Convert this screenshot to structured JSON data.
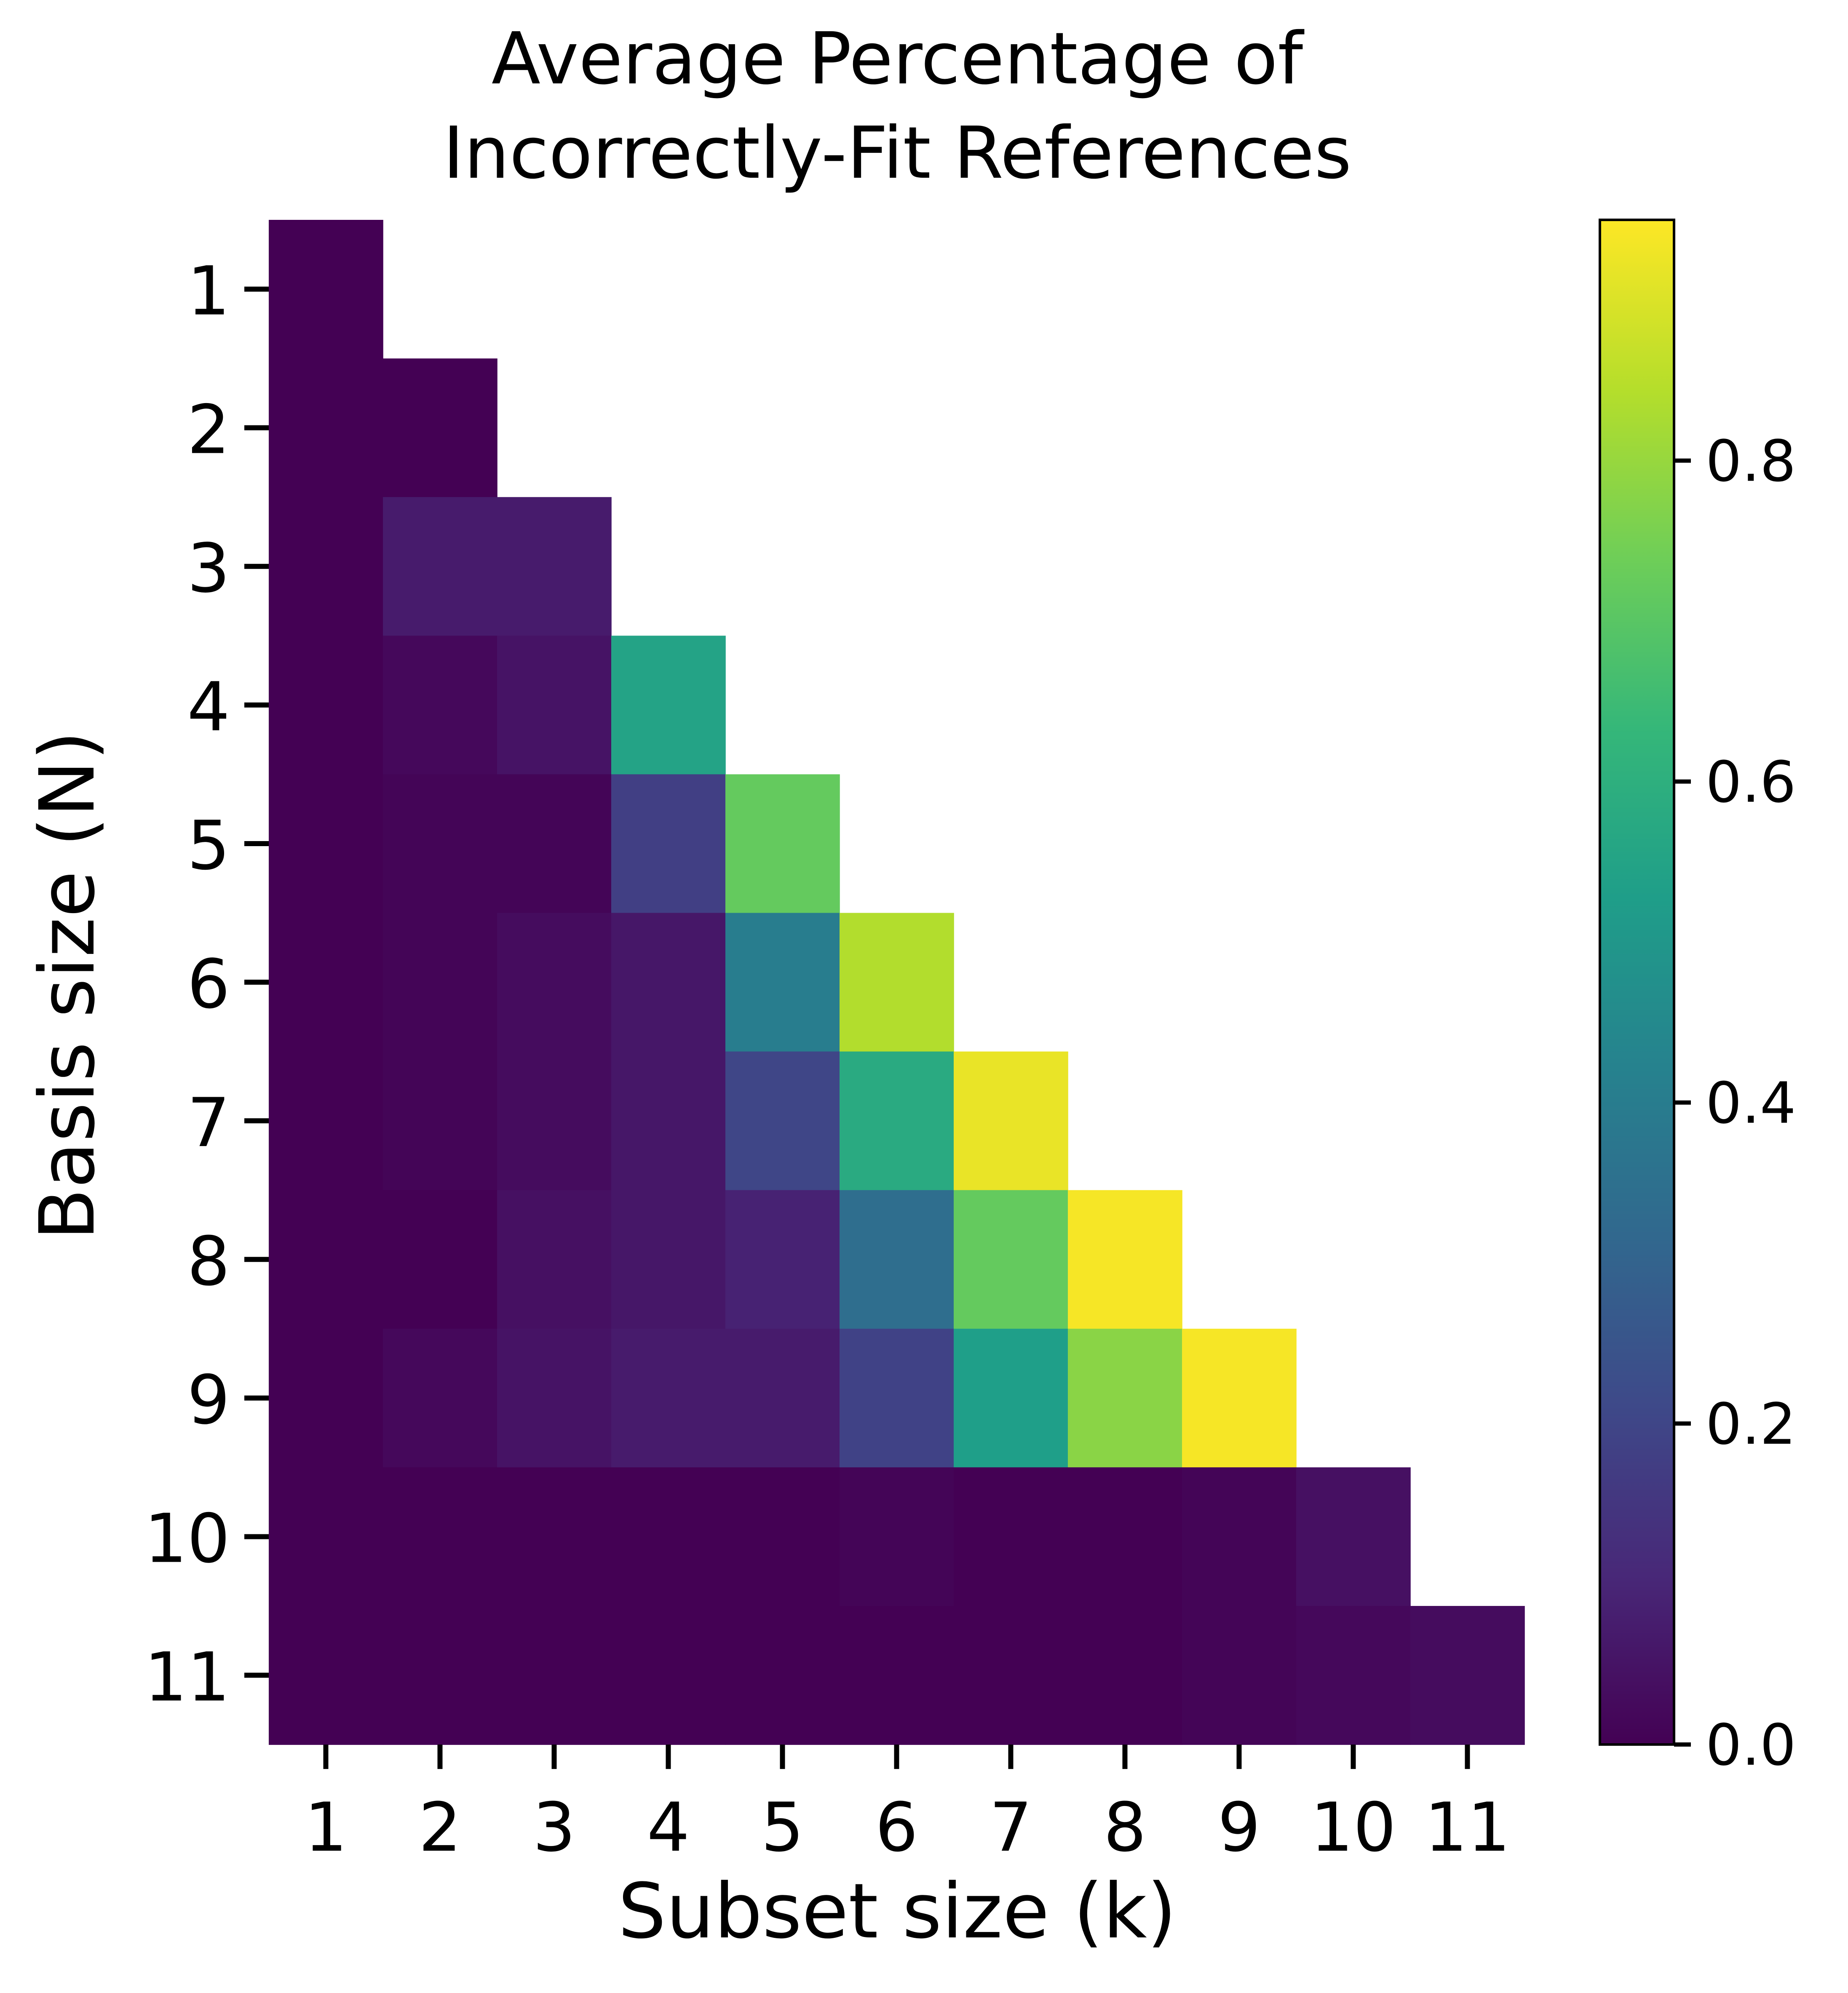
{
  "chart_data": {
    "type": "heatmap",
    "title_lines": [
      "Average Percentage of",
      "Incorrectly-Fit References"
    ],
    "xlabel": "Subset size (k)",
    "ylabel": "Basis size (N)",
    "x_categories": [
      "1",
      "2",
      "3",
      "4",
      "5",
      "6",
      "7",
      "8",
      "9",
      "10",
      "11"
    ],
    "y_categories": [
      "1",
      "2",
      "3",
      "4",
      "5",
      "6",
      "7",
      "8",
      "9",
      "10",
      "11"
    ],
    "colormap": "viridis",
    "color_range": [
      0.0,
      0.95
    ],
    "colorbar_ticks": [
      0.0,
      0.2,
      0.4,
      0.6,
      0.8
    ],
    "colorbar_tick_labels": [
      "0.0",
      "0.2",
      "0.4",
      "0.6",
      "0.8"
    ],
    "values": [
      [
        0.0
      ],
      [
        0.0,
        0.0
      ],
      [
        0.0,
        0.07,
        0.07
      ],
      [
        0.0,
        0.02,
        0.05,
        0.55
      ],
      [
        0.0,
        0.01,
        0.01,
        0.18,
        0.72
      ],
      [
        0.0,
        0.01,
        0.03,
        0.06,
        0.4,
        0.84
      ],
      [
        0.0,
        0.01,
        0.03,
        0.06,
        0.2,
        0.58,
        0.92
      ],
      [
        0.0,
        0.0,
        0.04,
        0.06,
        0.09,
        0.34,
        0.72,
        0.94
      ],
      [
        0.0,
        0.02,
        0.05,
        0.07,
        0.07,
        0.19,
        0.53,
        0.78,
        0.94
      ],
      [
        0.0,
        0.0,
        0.0,
        0.0,
        0.0,
        0.01,
        0.0,
        0.0,
        0.01,
        0.04
      ],
      [
        0.0,
        0.0,
        0.0,
        0.0,
        0.0,
        0.0,
        0.0,
        0.0,
        0.01,
        0.02,
        0.03
      ]
    ]
  }
}
